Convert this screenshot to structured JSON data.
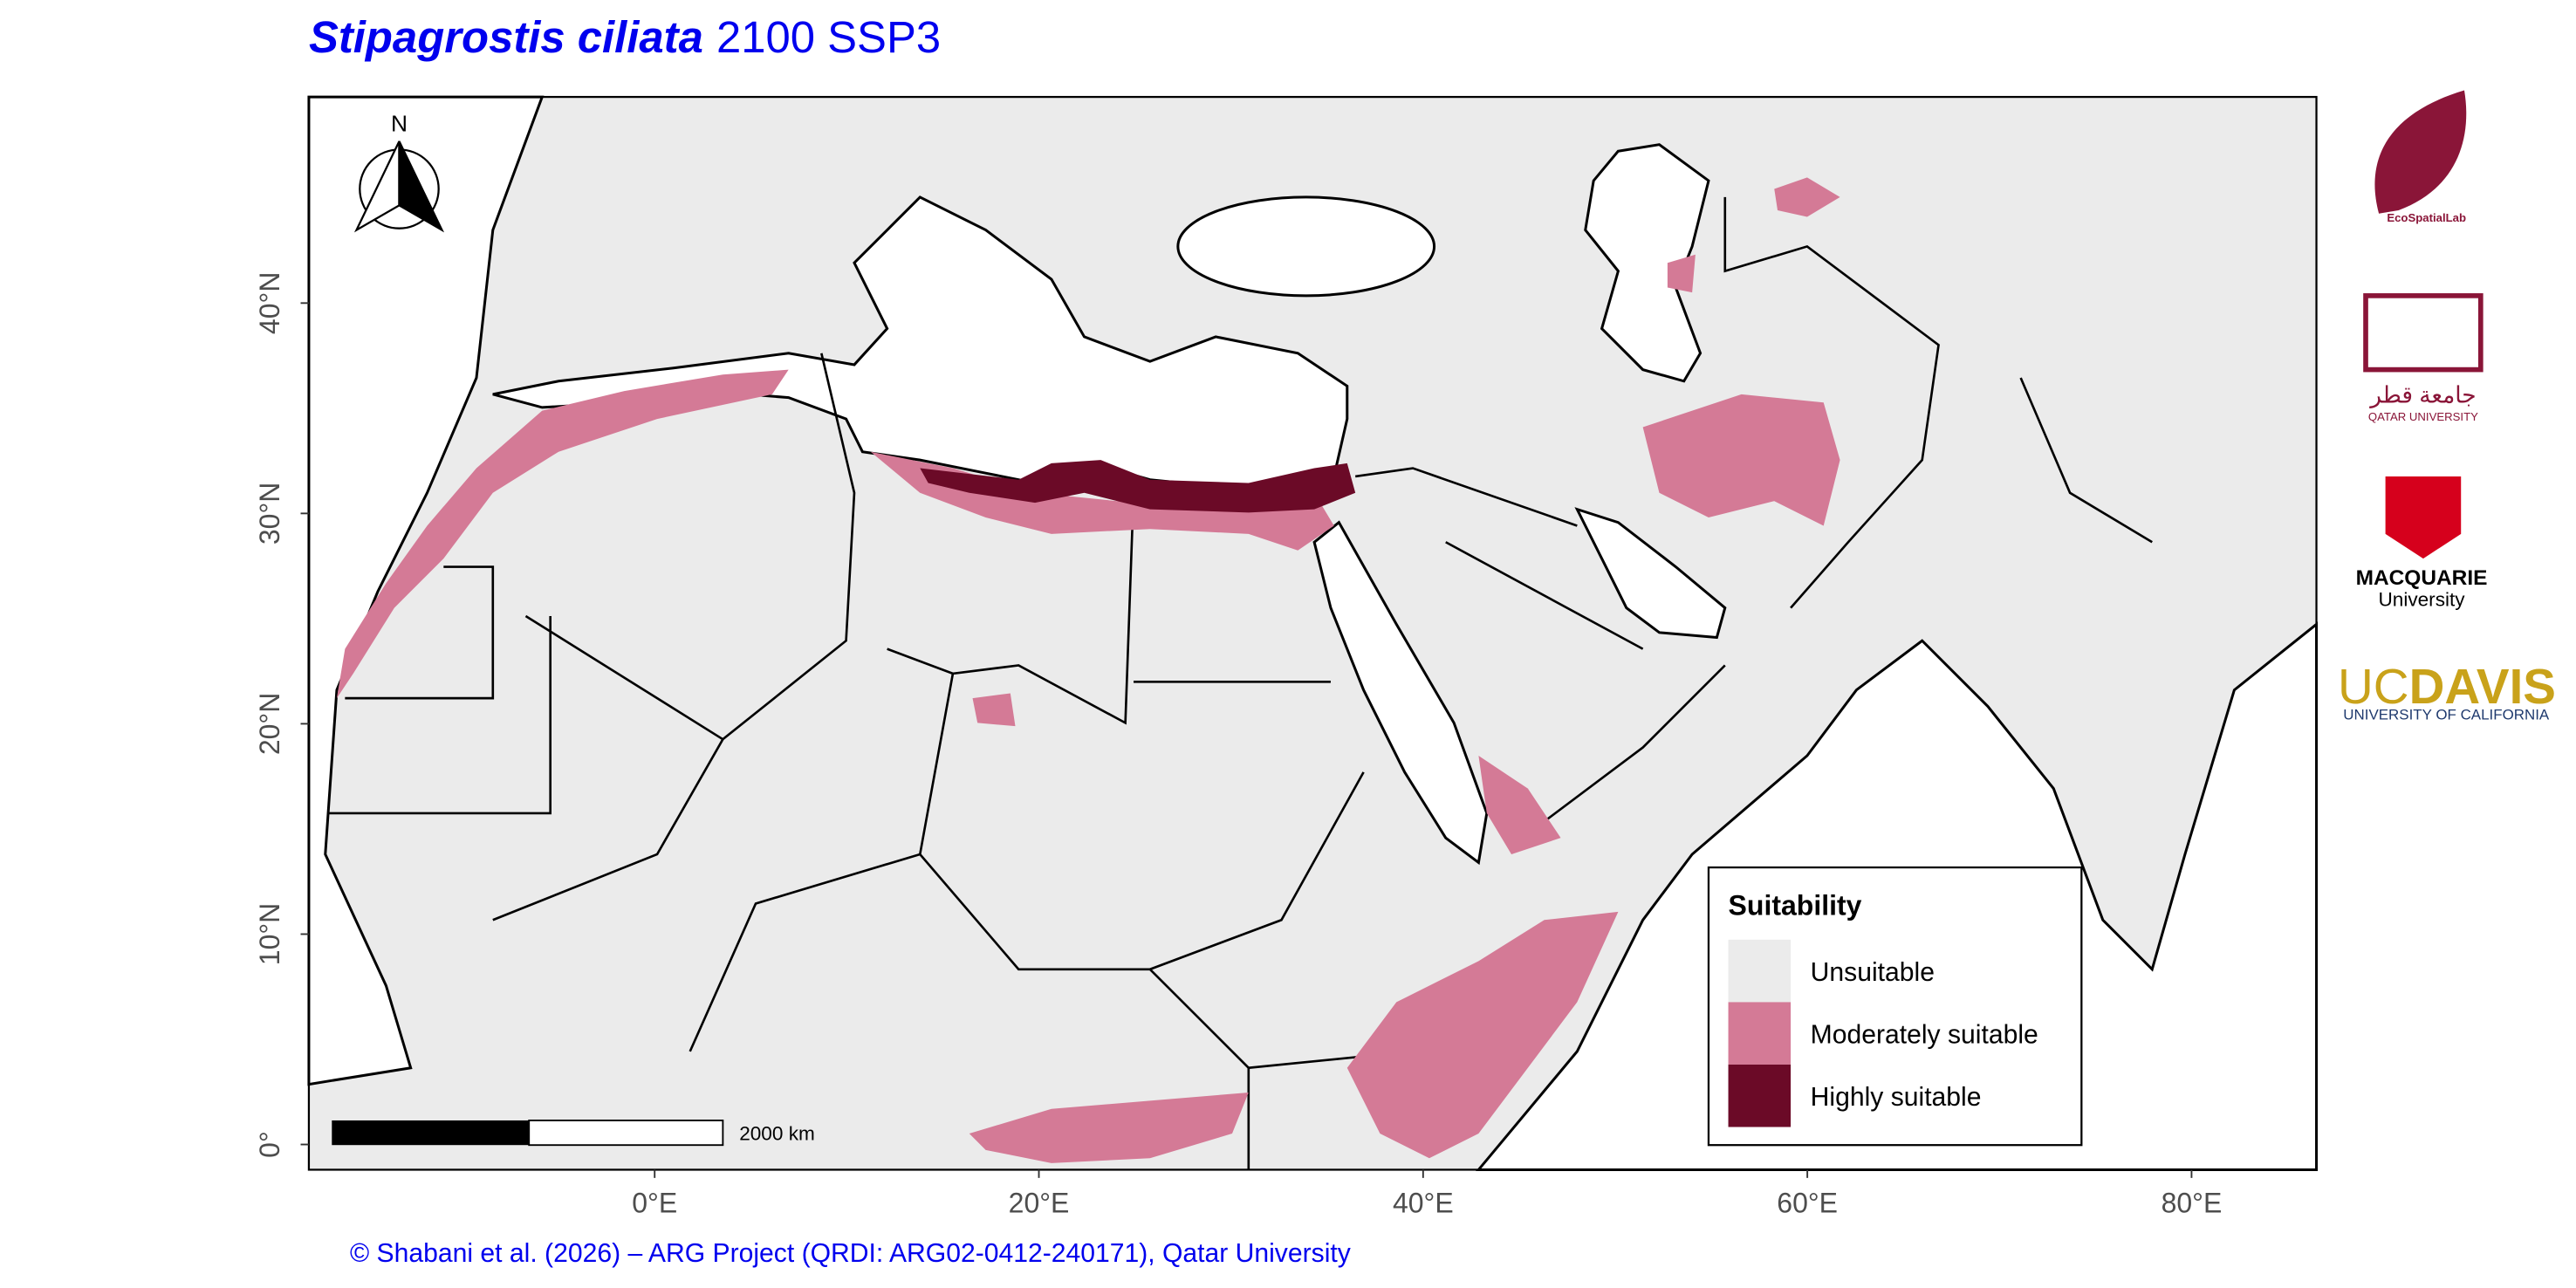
{
  "title": {
    "species": "Stipagrostis ciliata",
    "scenario": "2100 SSP3"
  },
  "map": {
    "xlim": [
      -18,
      86.5
    ],
    "ylim": [
      -1.2,
      49.8
    ],
    "xticks": [
      {
        "value": 0,
        "label": "0°E"
      },
      {
        "value": 20,
        "label": "20°E"
      },
      {
        "value": 40,
        "label": "40°E"
      },
      {
        "value": 60,
        "label": "60°E"
      },
      {
        "value": 80,
        "label": "80°E"
      }
    ],
    "yticks": [
      {
        "value": 0,
        "label": "0°"
      },
      {
        "value": 10,
        "label": "10°N"
      },
      {
        "value": 20,
        "label": "20°N"
      },
      {
        "value": 30,
        "label": "30°N"
      },
      {
        "value": 40,
        "label": "40°N"
      }
    ],
    "north_label": "N",
    "scale_bar_label": "2000 km",
    "legend": {
      "title": "Suitability",
      "entries": [
        {
          "name": "Unsuitable",
          "color": "#ebebeb"
        },
        {
          "name": "Moderately suitable",
          "color": "#d47a96"
        },
        {
          "name": "Highly suitable",
          "color": "#6b0a27"
        }
      ]
    }
  },
  "credit": "© Shabani et al. (2026) – ARG Project (QRDI: ARG02-0412-240171), Qatar University",
  "logos": {
    "ecospatial": "EcoSpatialLab",
    "qu_arabic": "جامعة قطر",
    "qu": "QATAR UNIVERSITY",
    "macquarie": "MACQUARIE",
    "macquarie_sub": "University",
    "ucdavis_uc": "UC",
    "ucdavis_davis": "DAVIS",
    "ucdavis_sub": "UNIVERSITY OF CALIFORNIA"
  }
}
